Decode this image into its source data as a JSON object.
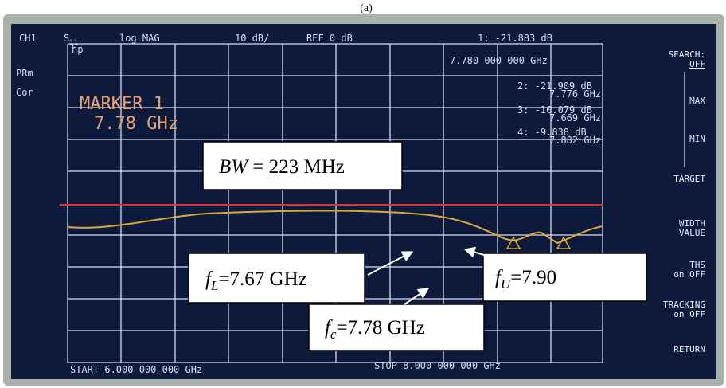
{
  "caption": "(a)",
  "header": {
    "channel": "CH1",
    "s_param": {
      "base": "S",
      "sub": "11"
    },
    "format": "log MAG",
    "scale": "10 dB/",
    "ref": "REF 0 dB",
    "marker_value": "1: -21.883 dB",
    "marker_freq": "7.780 000 000 GHz"
  },
  "left_labels": [
    "hp",
    "PRm",
    "Cor"
  ],
  "marker": {
    "title": "MARKER 1",
    "freq": "7.78 GHz"
  },
  "marker_list": [
    {
      "value": "2: -21.909 dB",
      "freq": "7.776 GHz"
    },
    {
      "value": "3: -10.079 dB",
      "freq": "7.669 GHz"
    },
    {
      "value": "4: -9.838 dB",
      "freq": "7.882 GHz"
    }
  ],
  "softkeys": [
    "SEARCH:",
    "OFF",
    "MAX",
    "MIN",
    "TARGET",
    "WIDTH",
    "VALUE",
    "THS",
    "on OFF",
    "TRACKING",
    "on OFF",
    "RETURN"
  ],
  "footer": {
    "start": "START 6.000 000 000 GHz",
    "stop": "STOP 8.000 000 000 GHz"
  },
  "annotations": {
    "bw": {
      "symbol": "BW",
      "rest": "= 223 MHz"
    },
    "f_lower": {
      "base": "f",
      "sub": "L",
      "rest": "=7.67 GHz"
    },
    "f_upper": {
      "base": "f",
      "sub": "U",
      "rest": "=7.90"
    },
    "f_center": {
      "base": "f",
      "sub": "c",
      "rest": "=7.78 GHz"
    }
  }
}
